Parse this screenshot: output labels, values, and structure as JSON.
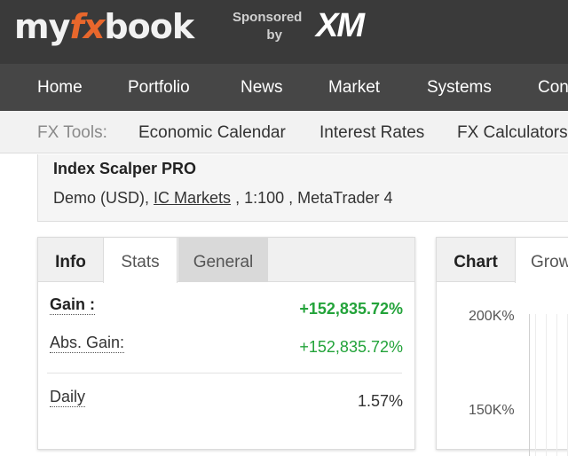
{
  "brand": {
    "logo_prefix": "my",
    "logo_fx": "fx",
    "logo_suffix": "book",
    "sponsored_line1": "Sponsored",
    "sponsored_line2": "by",
    "sponsor_name": "XM",
    "accent_color": "#e8672c"
  },
  "main_nav": {
    "items": [
      "Home",
      "Portfolio",
      "News",
      "Market",
      "Systems",
      "Con"
    ]
  },
  "tools": {
    "label": "FX Tools:",
    "items": [
      "Economic Calendar",
      "Interest Rates",
      "FX Calculators"
    ]
  },
  "account": {
    "name": "Index Scalper PRO",
    "type": "Demo (USD),",
    "broker": "IC Markets",
    "leverage": ", 1:100 ,",
    "platform": "MetaTrader 4"
  },
  "stats_panel": {
    "tabs": [
      "Info",
      "Stats",
      "General"
    ],
    "rows": [
      {
        "label": "Gain :",
        "value": "+152,835.72%",
        "color": "#23a33a"
      },
      {
        "label": "Abs. Gain:",
        "value": "+152,835.72%",
        "color": "#23a33a"
      },
      {
        "label": "Daily",
        "value": "1.57%"
      }
    ]
  },
  "chart_panel": {
    "tabs": [
      "Chart",
      "Grow"
    ],
    "y_ticks": [
      "200K%",
      "150K%"
    ]
  }
}
